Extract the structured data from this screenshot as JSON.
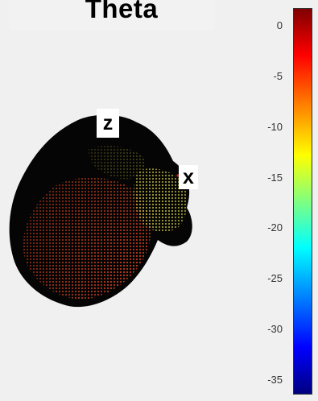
{
  "title": "Theta",
  "axes": {
    "z_label": "z",
    "x_label": "x"
  },
  "colorbar": {
    "colormap": "jet",
    "range": [
      -35,
      0
    ],
    "ticks": [
      "0",
      "-5",
      "-10",
      "-15",
      "-20",
      "-25",
      "-30",
      "-35"
    ]
  },
  "colors": {
    "background": "#f0f0f0",
    "head_surface": "#0a0a0a",
    "mesh_high": "#c83020",
    "mesh_mid": "#c8c040"
  }
}
